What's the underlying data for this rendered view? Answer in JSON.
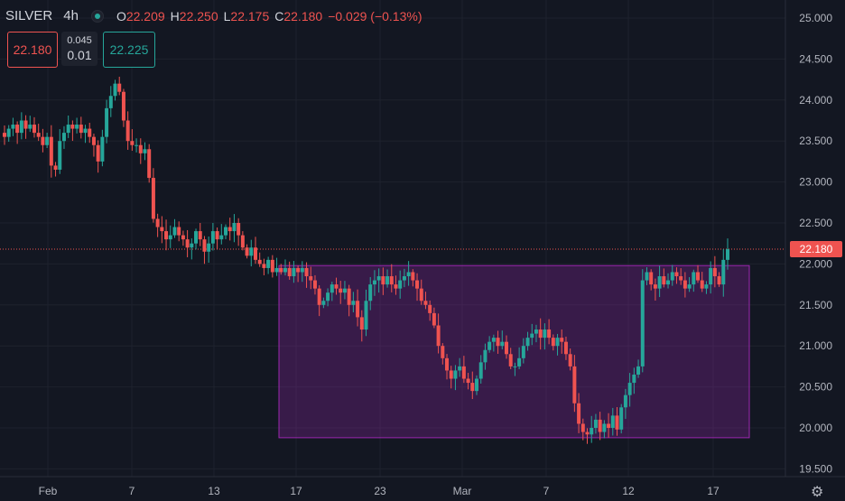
{
  "header": {
    "symbol": "SILVER",
    "timeframe": "4h",
    "open_label": "O",
    "open": "22.209",
    "high_label": "H",
    "high": "22.250",
    "low_label": "L",
    "low": "22.175",
    "close_label": "C",
    "close": "22.180",
    "change": "−0.029 (−0.13%)"
  },
  "trade": {
    "sell": "22.180",
    "spread_top": "0.045",
    "spread_bottom": "0.01",
    "buy": "22.225"
  },
  "last_price": "22.180",
  "colors": {
    "up": "#26a69a",
    "down": "#ef5350",
    "background": "#131722",
    "grid": "#1e222d",
    "range_box": "#9c27b0"
  },
  "chart_data": {
    "type": "candlestick",
    "title": "SILVER",
    "y_ticks": [
      "19.500",
      "20.000",
      "20.500",
      "21.000",
      "21.500",
      "22.000",
      "22.500",
      "23.000",
      "23.500",
      "24.000",
      "24.500",
      "25.000"
    ],
    "ylim": [
      19.5,
      25.0
    ],
    "x_ticks": [
      "Feb",
      "7",
      "13",
      "17",
      "23",
      "Mar",
      "7",
      "12",
      "17"
    ],
    "range_box": {
      "y_low": 19.88,
      "y_high": 21.98
    },
    "last_price": 22.18,
    "close_path": [
      [
        23.55,
        23.65,
        23.7,
        23.6,
        23.75,
        23.65,
        23.7,
        23.6,
        23.55,
        23.45,
        23.55,
        23.2,
        23.15,
        23.5,
        23.6,
        23.7,
        23.65,
        23.7,
        23.6,
        23.65,
        23.55,
        23.45,
        23.25,
        23.55,
        23.9,
        24.05,
        24.2,
        24.1,
        23.75,
        23.5
      ],
      [
        23.45,
        23.45,
        23.35,
        23.4,
        23.05,
        22.55,
        22.45,
        22.4,
        22.3,
        22.35,
        22.45,
        22.35,
        22.3,
        22.2,
        22.25,
        22.4,
        22.3,
        22.15,
        22.25,
        22.4,
        22.3,
        22.35,
        22.45,
        22.4,
        22.5,
        22.35,
        22.2,
        22.1,
        22.2,
        22.05
      ],
      [
        22.0,
        21.95,
        22.05,
        21.9,
        21.95,
        21.9,
        21.95,
        21.85,
        21.95,
        21.9,
        21.95,
        21.85,
        21.8,
        21.7,
        21.5,
        21.55,
        21.65,
        21.75,
        21.7,
        21.65,
        21.7,
        21.5,
        21.55,
        21.35,
        21.2,
        21.55,
        21.75,
        21.8,
        21.85,
        21.75
      ],
      [
        21.85,
        21.75,
        21.7,
        21.8,
        21.85,
        21.9,
        21.8,
        21.7,
        21.55,
        21.5,
        21.4,
        21.25,
        21.0,
        20.85,
        20.7,
        20.6,
        20.7,
        20.75,
        20.6,
        20.55,
        20.45,
        20.6,
        20.8,
        20.95,
        21.05,
        21.1,
        21.0,
        21.05,
        20.9,
        20.75
      ],
      [
        20.75,
        20.85,
        21.0,
        21.1,
        21.15,
        21.2,
        21.1,
        21.2,
        21.1,
        21.0,
        21.1,
        21.05,
        20.9,
        20.75,
        20.3,
        20.05,
        19.95,
        19.92,
        20.0,
        20.1,
        19.95,
        20.05,
        20.0,
        20.15,
        19.98,
        20.25,
        20.4,
        20.55,
        20.65,
        20.75
      ],
      [
        21.8,
        21.9,
        21.75,
        21.7,
        21.85,
        21.75,
        21.8,
        21.9,
        21.85,
        21.8,
        21.7,
        21.75,
        21.9,
        21.8,
        21.7,
        21.75,
        21.95,
        21.85,
        21.75,
        22.05,
        22.18
      ]
    ]
  }
}
